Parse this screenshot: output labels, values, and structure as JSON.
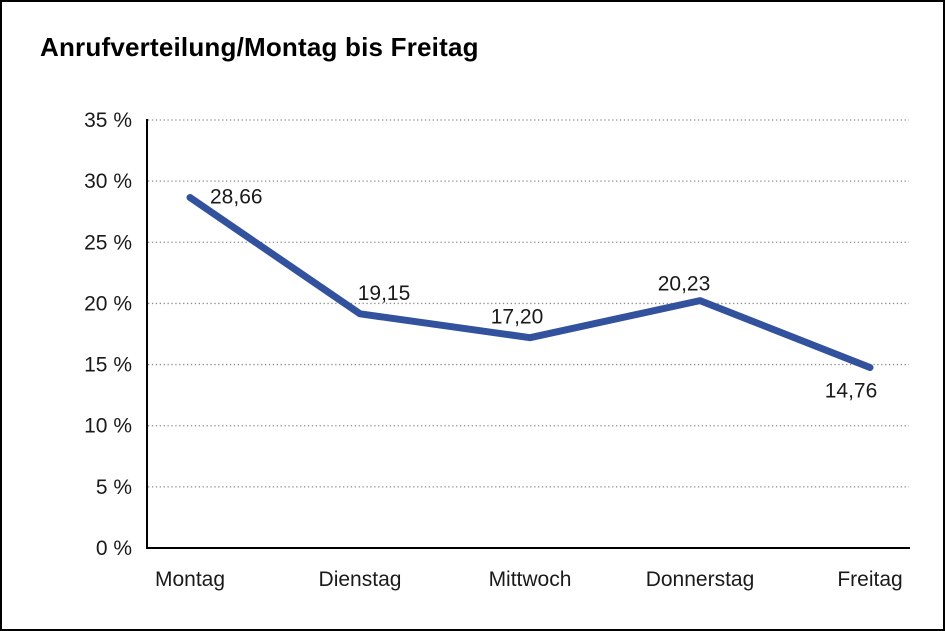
{
  "chart_data": {
    "type": "line",
    "title": "Anrufverteilung/Montag bis Freitag",
    "categories": [
      "Montag",
      "Dienstag",
      "Mittwoch",
      "Donnerstag",
      "Freitag"
    ],
    "series": [
      {
        "name": "Anrufverteilung",
        "values": [
          28.66,
          19.15,
          17.2,
          20.23,
          14.76
        ]
      }
    ],
    "value_labels": [
      "28,66",
      "19,15",
      "17,20",
      "20,23",
      "14,76"
    ],
    "xlabel": "",
    "ylabel": "",
    "ylim": [
      0,
      35
    ],
    "ytick_step": 5,
    "ytick_labels": [
      "0 %",
      "5 %",
      "10 %",
      "15 %",
      "20 %",
      "25 %",
      "30 %",
      "35 %"
    ],
    "grid": "horizontal-dotted",
    "legend": "none",
    "line_color": "#33529e",
    "axis_color": "#000000",
    "gridline_color": "#8c8c8c",
    "text_color": "#1a1a1a"
  }
}
